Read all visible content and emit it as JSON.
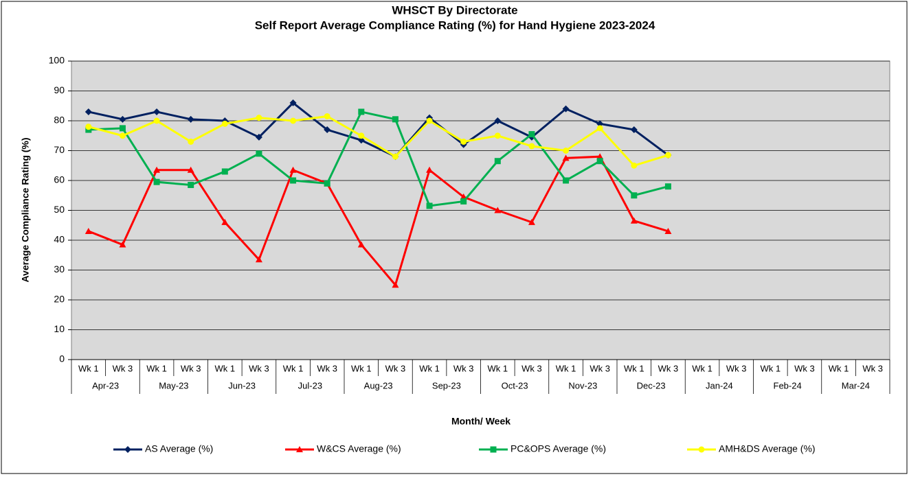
{
  "chart_data": {
    "type": "line",
    "title": "WHSCT By Directorate",
    "subtitle": "Self Report Average Compliance Rating (%)  for Hand Hygiene 2023-2024",
    "y_label": "Average Compliance Rating (%)",
    "x_label": "Month/ Week",
    "categories": [
      "Wk 1",
      "Wk 3",
      "Wk 1",
      "Wk 3",
      "Wk 1",
      "Wk 3",
      "Wk 1",
      "Wk 3",
      "Wk 1",
      "Wk 3",
      "Wk 1",
      "Wk 3",
      "Wk 1",
      "Wk 3",
      "Wk 1",
      "Wk 3",
      "Wk 1",
      "Wk 3",
      "Wk 1",
      "Wk 3",
      "Wk 1",
      "Wk 3",
      "Wk 1",
      "Wk 3"
    ],
    "months": [
      "Apr-23",
      "May-23",
      "Jun-23",
      "Jul-23",
      "Aug-23",
      "Sep-23",
      "Oct-23",
      "Nov-23",
      "Dec-23",
      "Jan-24",
      "Feb-24",
      "Mar-24"
    ],
    "ylim": [
      0,
      100
    ],
    "yticks": [
      0,
      10,
      20,
      30,
      40,
      50,
      60,
      70,
      80,
      90,
      100
    ],
    "grid": true,
    "legend": "bottom",
    "series": [
      {
        "name": "AS Average (%)",
        "color": "#002060",
        "marker": "diamond",
        "values": [
          83,
          80.5,
          83,
          80.5,
          80,
          74.5,
          86,
          77,
          73.5,
          68,
          81,
          72,
          80,
          74.5,
          84,
          79,
          77,
          68.5,
          null,
          null,
          null,
          null,
          null,
          null
        ]
      },
      {
        "name": "W&CS Average (%)",
        "color": "#ff0000",
        "marker": "triangle",
        "values": [
          43,
          38.5,
          63.5,
          63.5,
          46,
          33.5,
          63.5,
          59,
          38.5,
          25,
          63.5,
          54.5,
          50,
          46,
          67.5,
          68,
          46.5,
          43,
          null,
          null,
          null,
          null,
          null,
          null
        ]
      },
      {
        "name": "PC&OPS Average (%)",
        "color": "#00b050",
        "marker": "square",
        "values": [
          77,
          77.5,
          59.5,
          58.5,
          63,
          69,
          60,
          59,
          83,
          80.5,
          51.5,
          53,
          66.5,
          75.5,
          60,
          66.5,
          55,
          58,
          null,
          null,
          null,
          null,
          null,
          null
        ]
      },
      {
        "name": "AMH&DS Average (%)",
        "color": "#ffff00",
        "marker": "circle",
        "values": [
          78,
          75,
          80,
          73,
          79,
          81,
          80,
          81.5,
          75,
          68,
          80,
          73,
          75,
          71.5,
          70,
          77.5,
          65,
          68.5,
          null,
          null,
          null,
          null,
          null,
          null
        ]
      }
    ]
  }
}
